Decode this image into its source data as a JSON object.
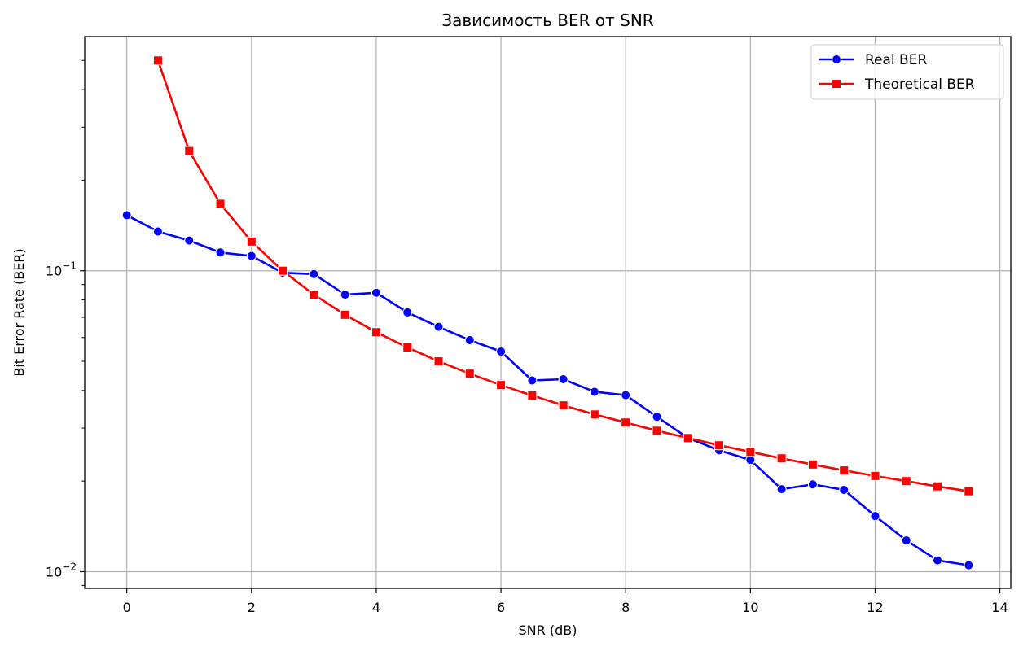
{
  "chart_data": {
    "type": "line",
    "title": "Зависимость BER от SNR",
    "xlabel": "SNR (dB)",
    "ylabel": "Bit Error Rate (BER)",
    "xlim": [
      -0.675,
      14.175
    ],
    "ylim": [
      0.0088,
      0.6
    ],
    "yscale": "log",
    "grid": true,
    "legend_position": "top-right",
    "x_ticks": [
      0,
      2,
      4,
      6,
      8,
      10,
      12,
      14
    ],
    "y_ticks": [
      {
        "value": 0.1,
        "base": "10",
        "exp": "−1"
      },
      {
        "value": 0.01,
        "base": "10",
        "exp": "−2"
      }
    ],
    "series": [
      {
        "name": "Real BER",
        "color": "#0000ff",
        "marker": "circle",
        "x": [
          0,
          0.5,
          1,
          1.5,
          2,
          2.5,
          3,
          3.5,
          4,
          4.5,
          5,
          5.5,
          6,
          6.5,
          7,
          7.5,
          8,
          8.5,
          9,
          9.5,
          10,
          10.5,
          11,
          11.5,
          12,
          12.5,
          13,
          13.5
        ],
        "y": [
          0.153,
          0.135,
          0.126,
          0.115,
          0.112,
          0.0985,
          0.0975,
          0.0833,
          0.0845,
          0.0727,
          0.0651,
          0.0588,
          0.0539,
          0.0432,
          0.0436,
          0.0396,
          0.0386,
          0.0327,
          0.0278,
          0.0253,
          0.0235,
          0.0188,
          0.0195,
          0.0187,
          0.0153,
          0.0127,
          0.0109,
          0.0105
        ]
      },
      {
        "name": "Theoretical BER",
        "color": "#ff0000",
        "marker": "square",
        "x": [
          0.5,
          1,
          1.5,
          2,
          2.5,
          3,
          3.5,
          4,
          4.5,
          5,
          5.5,
          6,
          6.5,
          7,
          7.5,
          8,
          8.5,
          9,
          9.5,
          10,
          10.5,
          11,
          11.5,
          12,
          12.5,
          13,
          13.5
        ],
        "y": [
          0.5,
          0.25,
          0.167,
          0.125,
          0.1,
          0.0833,
          0.0714,
          0.0625,
          0.0556,
          0.05,
          0.0455,
          0.0417,
          0.0385,
          0.0357,
          0.0333,
          0.0313,
          0.0294,
          0.0278,
          0.0263,
          0.025,
          0.0238,
          0.0227,
          0.0217,
          0.0208,
          0.02,
          0.0192,
          0.0185
        ]
      }
    ]
  }
}
